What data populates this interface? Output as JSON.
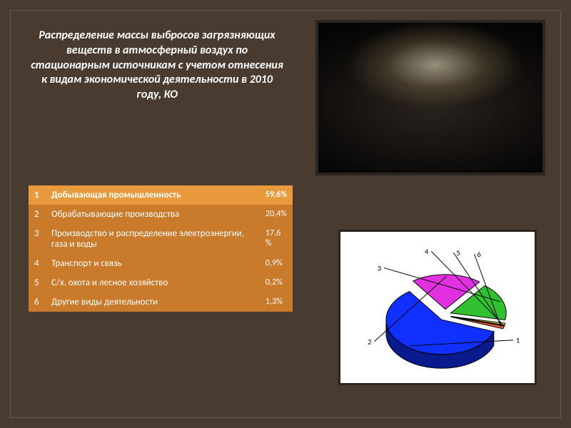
{
  "slide": {
    "background_color": "#4a3b30",
    "inner_border_color": "#6a594c",
    "title": "Распределение массы выбросов загрязняющих веществ в атмосферный воздух по стационарным источникам с учетом отнесения к видам экономической деятельности в 2010 году, КО",
    "title_color": "#ffffff",
    "title_fontsize": 16
  },
  "table": {
    "header_bg": "#e99a3d",
    "row_bg": "#c97a2b",
    "text_color": "#ffffff",
    "fontsize": 13,
    "pct_fontsize": 12,
    "rows": [
      {
        "num": "1",
        "label": "Добывающая промышленность",
        "pct": "59,6%"
      },
      {
        "num": "2",
        "label": "Обрабатывающие производства",
        "pct": "20,4%"
      },
      {
        "num": "3",
        "label": "Производство и распределение электроэнергии, газа и воды",
        "pct": "17,6 %"
      },
      {
        "num": "4",
        "label": "Транспорт и связь",
        "pct": "0,9%"
      },
      {
        "num": "5",
        "label": "С/х. охота и лесное хозяйство",
        "pct": "0,2%"
      },
      {
        "num": "6",
        "label": "Другие виды деятельности",
        "pct": "1,3%"
      }
    ]
  },
  "pie": {
    "type": "pie-3d-exploded",
    "background_color": "#ffffff",
    "slice_values": [
      59.6,
      20.4,
      17.6,
      0.9,
      0.2,
      1.3
    ],
    "slice_colors": [
      "#1030ff",
      "#e030e0",
      "#30c030",
      "#f0e020",
      "#40c8e0",
      "#f06030"
    ],
    "slice_edge_color": "#000000",
    "label_color": "#000000",
    "label_fontsize": 11,
    "callout_labels": [
      "1",
      "2",
      "3",
      "4",
      "5",
      "6"
    ]
  }
}
